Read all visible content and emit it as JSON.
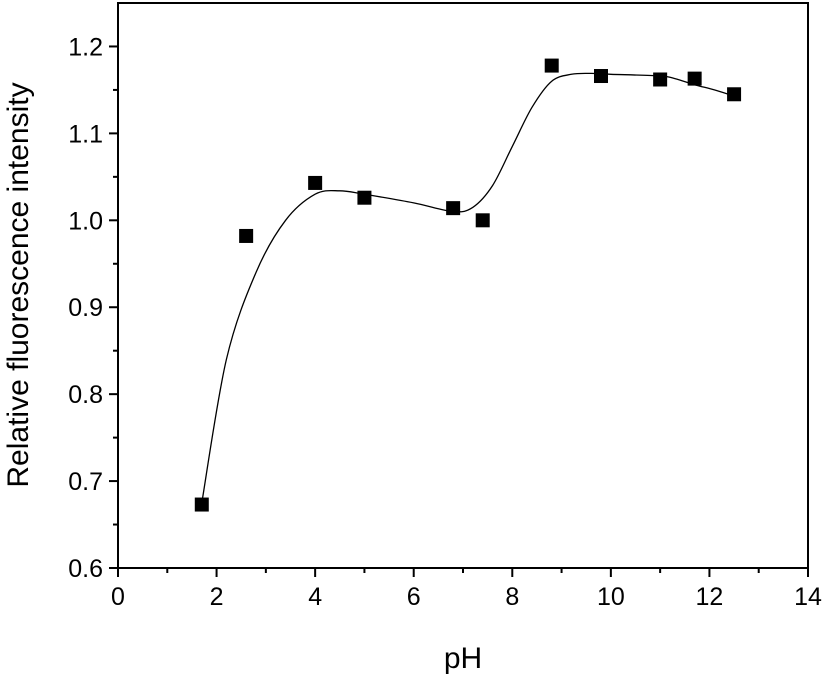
{
  "chart_data": {
    "type": "scatter",
    "xlabel": "pH",
    "ylabel": "Relative fluorescence intensity",
    "xlim": [
      0,
      14
    ],
    "ylim": [
      0.6,
      1.25
    ],
    "xticks": [
      0,
      2,
      4,
      6,
      8,
      10,
      12,
      14
    ],
    "xtick_labels": [
      "0",
      "2",
      "4",
      "6",
      "8",
      "10",
      "12",
      "14"
    ],
    "yticks": [
      0.6,
      0.7,
      0.8,
      0.9,
      1.0,
      1.1,
      1.2
    ],
    "ytick_labels": [
      "0.6",
      "0.7",
      "0.8",
      "0.9",
      "1.0",
      "1.1",
      "1.2"
    ],
    "grid": false,
    "marker": "filled-square",
    "fit_line": "smooth",
    "color": "#000000",
    "series": [
      {
        "x": [
          1.7,
          2.6,
          4.0,
          5.0,
          6.8,
          7.4,
          8.8,
          9.8,
          11.0,
          11.7,
          12.5
        ],
        "y": [
          0.673,
          0.982,
          1.043,
          1.026,
          1.014,
          1.0,
          1.178,
          1.166,
          1.162,
          1.163,
          1.145
        ]
      }
    ],
    "fit_curve": {
      "x": [
        1.7,
        2.2,
        2.8,
        3.4,
        4.0,
        4.5,
        5.0,
        6.0,
        6.8,
        7.2,
        7.6,
        8.0,
        8.4,
        8.8,
        9.2,
        9.6,
        10.0,
        11.0,
        11.3,
        11.7,
        12.1,
        12.5
      ],
      "y": [
        0.675,
        0.84,
        0.94,
        1.0,
        1.03,
        1.034,
        1.03,
        1.02,
        1.01,
        1.015,
        1.04,
        1.085,
        1.13,
        1.16,
        1.168,
        1.169,
        1.168,
        1.166,
        1.163,
        1.156,
        1.15,
        1.143
      ]
    }
  }
}
